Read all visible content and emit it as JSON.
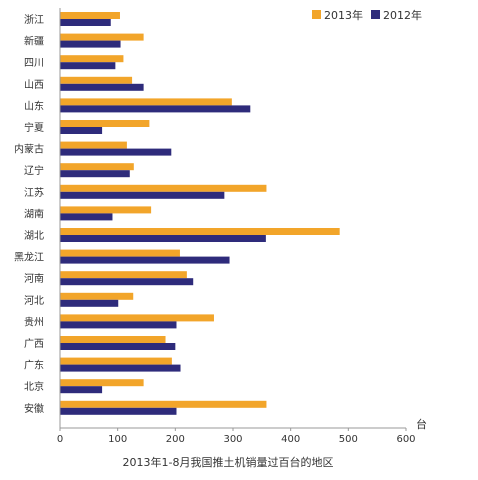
{
  "chart_data": {
    "type": "bar",
    "orientation": "horizontal",
    "title": "2013年1-8月我国推土机销量过百台的地区",
    "xlabel": "台",
    "ylabel": "",
    "xlim": [
      0,
      600
    ],
    "xticks": [
      "0",
      "100",
      "200",
      "300",
      "400",
      "500",
      "600"
    ],
    "grid": false,
    "legend_position": "top-right",
    "categories": [
      "浙江",
      "新疆",
      "四川",
      "山西",
      "山东",
      "宁夏",
      "内蒙古",
      "辽宁",
      "江苏",
      "湖南",
      "湖北",
      "黑龙江",
      "河南",
      "河北",
      "贵州",
      "广西",
      "广东",
      "北京",
      "安徽"
    ],
    "series": [
      {
        "name": "2013年",
        "color": "#f2a52a",
        "values": [
          104,
          145,
          110,
          125,
          298,
          155,
          116,
          128,
          358,
          158,
          485,
          208,
          220,
          127,
          267,
          183,
          194,
          145,
          358
        ]
      },
      {
        "name": "2012年",
        "color": "#2e2b7b",
        "values": [
          88,
          105,
          96,
          145,
          330,
          73,
          193,
          121,
          285,
          91,
          357,
          294,
          231,
          101,
          202,
          200,
          209,
          73,
          202
        ]
      }
    ]
  }
}
